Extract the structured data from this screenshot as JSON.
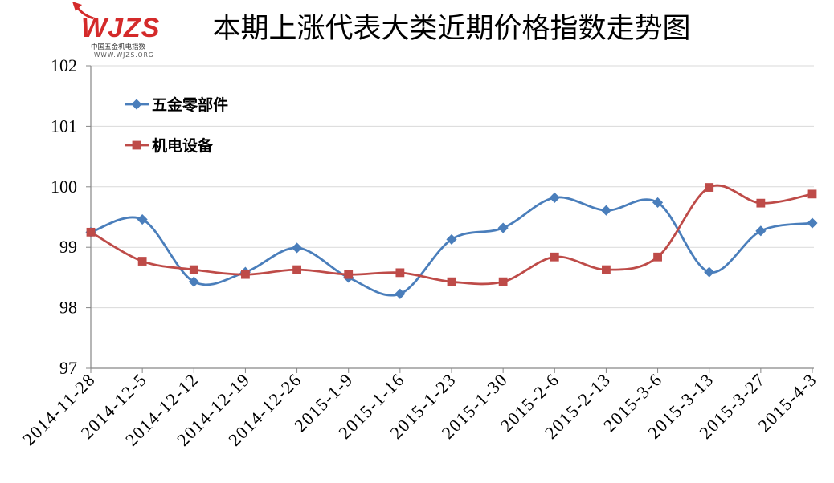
{
  "logo": {
    "mark": "WJZS",
    "name": "中国五金机电指数",
    "site": "WWW.WJZS.ORG",
    "icon": "logo-arrow-icon"
  },
  "colors": {
    "grid": "#D9D9D9",
    "axis": "#868686",
    "logo": "#D42A2A"
  },
  "chart_data": {
    "type": "line",
    "title": "本期上涨代表大类近期价格指数走势图",
    "xlabel": "",
    "ylabel": "",
    "categories": [
      "2014-11-28",
      "2014-12-5",
      "2014-12-12",
      "2014-12-19",
      "2014-12-26",
      "2015-1-9",
      "2015-1-16",
      "2015-1-23",
      "2015-1-30",
      "2015-2-6",
      "2015-2-13",
      "2015-3-6",
      "2015-3-13",
      "2015-3-27",
      "2015-4-3"
    ],
    "series": [
      {
        "name": "五金零部件",
        "marker": "diamond",
        "color": "#4A7EBB",
        "values": [
          99.25,
          99.46,
          98.43,
          98.59,
          98.99,
          98.5,
          98.23,
          99.13,
          99.32,
          99.82,
          99.61,
          99.74,
          98.59,
          99.27,
          99.4
        ]
      },
      {
        "name": "机电设备",
        "marker": "square",
        "color": "#BE4B48",
        "values": [
          99.25,
          98.77,
          98.63,
          98.55,
          98.63,
          98.55,
          98.58,
          98.43,
          98.43,
          98.84,
          98.63,
          98.84,
          99.99,
          99.73,
          99.88
        ]
      }
    ],
    "ylim": [
      97,
      102
    ],
    "yticks": [
      97,
      98,
      99,
      100,
      101,
      102
    ],
    "grid": true,
    "smooth": true,
    "legend": "top-left"
  }
}
